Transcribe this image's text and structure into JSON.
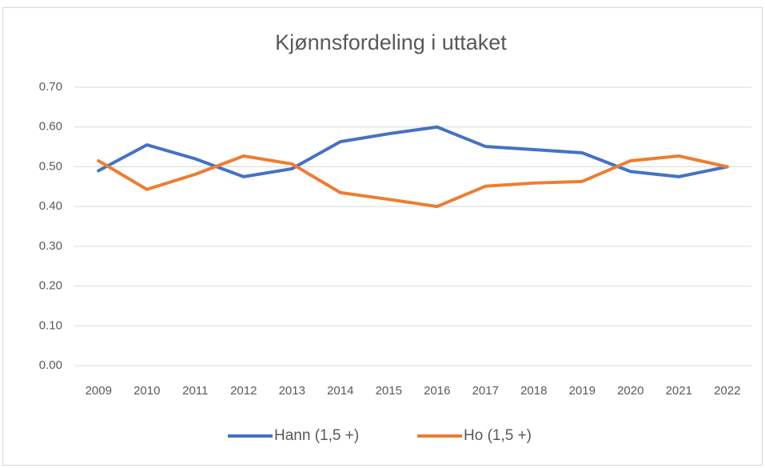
{
  "chart_data": {
    "type": "line",
    "title": "Kjønnsfordeling i uttaket",
    "categories": [
      "2009",
      "2010",
      "2011",
      "2012",
      "2013",
      "2014",
      "2015",
      "2016",
      "2017",
      "2018",
      "2019",
      "2020",
      "2021",
      "2022"
    ],
    "series": [
      {
        "name": "Hann (1,5 +)",
        "color": "#4472c4",
        "values": [
          0.49,
          0.555,
          0.52,
          0.475,
          0.495,
          0.563,
          0.583,
          0.6,
          0.551,
          0.543,
          0.535,
          0.488,
          0.475,
          0.5
        ]
      },
      {
        "name": "Ho (1,5 +)",
        "color": "#ed7d31",
        "values": [
          0.515,
          0.443,
          0.481,
          0.527,
          0.507,
          0.435,
          0.418,
          0.4,
          0.451,
          0.459,
          0.463,
          0.515,
          0.527,
          0.5
        ]
      }
    ],
    "ylim": [
      0,
      0.7
    ],
    "yticks": [
      {
        "value": 0,
        "label": "0.00"
      },
      {
        "value": 0.1,
        "label": "0.10"
      },
      {
        "value": 0.2,
        "label": "0.20"
      },
      {
        "value": 0.3,
        "label": "0.30"
      },
      {
        "value": 0.4,
        "label": "0.40"
      },
      {
        "value": 0.5,
        "label": "0.50"
      },
      {
        "value": 0.6,
        "label": "0.60"
      },
      {
        "value": 0.7,
        "label": "0.70"
      }
    ],
    "grid": true,
    "legend": "bottom"
  }
}
